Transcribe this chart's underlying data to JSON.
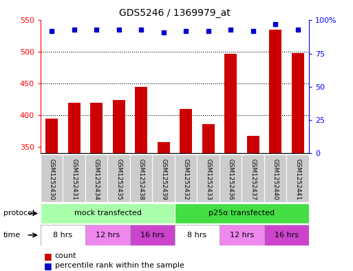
{
  "title": "GDS5246 / 1369979_at",
  "samples": [
    "GSM1252430",
    "GSM1252431",
    "GSM1252434",
    "GSM1252435",
    "GSM1252438",
    "GSM1252439",
    "GSM1252432",
    "GSM1252433",
    "GSM1252436",
    "GSM1252437",
    "GSM1252440",
    "GSM1252441"
  ],
  "counts": [
    395,
    420,
    420,
    424,
    445,
    357,
    410,
    386,
    497,
    367,
    535,
    498
  ],
  "percentile_ranks": [
    92,
    93,
    93,
    93,
    93,
    91,
    92,
    92,
    93,
    92,
    97,
    93
  ],
  "ylim_left": [
    340,
    550
  ],
  "ylim_right": [
    0,
    100
  ],
  "yticks_left": [
    350,
    400,
    450,
    500,
    550
  ],
  "yticks_right": [
    0,
    25,
    50,
    75,
    100
  ],
  "bar_color": "#cc0000",
  "scatter_color": "#0000cc",
  "protocol_groups": [
    {
      "label": "mock transfected",
      "start": 0,
      "end": 6,
      "color": "#aaffaa"
    },
    {
      "label": "p25α transfected",
      "start": 6,
      "end": 12,
      "color": "#44dd44"
    }
  ],
  "time_groups": [
    {
      "label": "8 hrs",
      "start": 0,
      "end": 2,
      "color": "#ffffff"
    },
    {
      "label": "12 hrs",
      "start": 2,
      "end": 4,
      "color": "#ee88ee"
    },
    {
      "label": "16 hrs",
      "start": 4,
      "end": 6,
      "color": "#cc44cc"
    },
    {
      "label": "8 hrs",
      "start": 6,
      "end": 8,
      "color": "#ffffff"
    },
    {
      "label": "12 hrs",
      "start": 8,
      "end": 10,
      "color": "#ee88ee"
    },
    {
      "label": "16 hrs",
      "start": 10,
      "end": 12,
      "color": "#cc44cc"
    }
  ],
  "legend_count_color": "#cc0000",
  "legend_pct_color": "#0000cc",
  "bg_color": "#ffffff",
  "sample_box_color": "#cccccc"
}
